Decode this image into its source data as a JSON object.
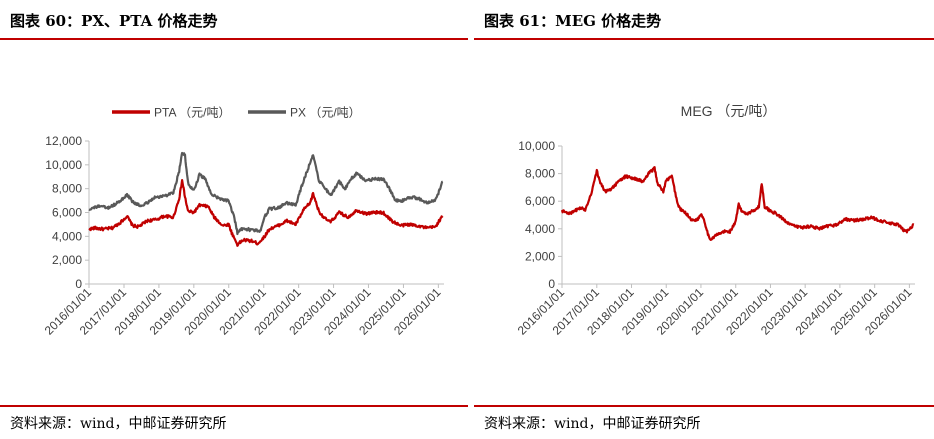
{
  "colors": {
    "accent_red": "#c00000",
    "pta_line": "#c00000",
    "px_line": "#595959",
    "meg_line": "#c00000",
    "axis": "#bfbfbf"
  },
  "left": {
    "title": "图表 60：PX、PTA 价格走势",
    "source": "资料来源：wind，中邮证券研究所"
  },
  "right": {
    "title": "图表 61：MEG 价格走势",
    "source": "资料来源：wind，中邮证券研究所"
  },
  "chart_data": [
    {
      "type": "line",
      "ylim": [
        0,
        12000
      ],
      "yticks": [
        "0",
        "2,000",
        "4,000",
        "6,000",
        "8,000",
        "10,000",
        "12,000"
      ],
      "xlim": [
        "2016-01-01",
        "2026-03-01"
      ],
      "xticks": [
        "2016/01/01",
        "2017/01/01",
        "2018/01/01",
        "2019/01/01",
        "2020/01/01",
        "2021/01/01",
        "2022/01/01",
        "2023/01/01",
        "2024/01/01",
        "2025/01/01",
        "2026/01/01"
      ],
      "legend": "top",
      "grid": false,
      "series": [
        {
          "name": "PTA （元/吨）",
          "color": "#c00000",
          "points": [
            [
              "2016-01-01",
              4600
            ],
            [
              "2016-03-01",
              4700
            ],
            [
              "2016-06-01",
              4600
            ],
            [
              "2016-09-01",
              4700
            ],
            [
              "2016-12-01",
              5200
            ],
            [
              "2017-02-01",
              5700
            ],
            [
              "2017-04-01",
              4900
            ],
            [
              "2017-06-01",
              4800
            ],
            [
              "2017-09-01",
              5300
            ],
            [
              "2017-12-01",
              5400
            ],
            [
              "2018-03-01",
              5700
            ],
            [
              "2018-06-01",
              5600
            ],
            [
              "2018-08-01",
              7200
            ],
            [
              "2018-09-01",
              8700
            ],
            [
              "2018-10-01",
              7300
            ],
            [
              "2018-11-01",
              6100
            ],
            [
              "2019-01-01",
              6000
            ],
            [
              "2019-03-01",
              6600
            ],
            [
              "2019-06-01",
              6500
            ],
            [
              "2019-08-01",
              5600
            ],
            [
              "2019-11-01",
              4900
            ],
            [
              "2020-01-01",
              5000
            ],
            [
              "2020-02-01",
              4300
            ],
            [
              "2020-04-01",
              3300
            ],
            [
              "2020-06-01",
              3700
            ],
            [
              "2020-09-01",
              3600
            ],
            [
              "2020-11-01",
              3400
            ],
            [
              "2021-01-01",
              3900
            ],
            [
              "2021-03-01",
              4600
            ],
            [
              "2021-06-01",
              4900
            ],
            [
              "2021-09-01",
              5300
            ],
            [
              "2021-12-01",
              5000
            ],
            [
              "2022-03-01",
              6300
            ],
            [
              "2022-05-01",
              6800
            ],
            [
              "2022-06-01",
              7600
            ],
            [
              "2022-08-01",
              6100
            ],
            [
              "2022-10-01",
              5500
            ],
            [
              "2022-12-01",
              5200
            ],
            [
              "2023-03-01",
              6000
            ],
            [
              "2023-06-01",
              5600
            ],
            [
              "2023-09-01",
              6200
            ],
            [
              "2023-12-01",
              5900
            ],
            [
              "2024-03-01",
              6000
            ],
            [
              "2024-06-01",
              6000
            ],
            [
              "2024-09-01",
              5300
            ],
            [
              "2024-12-01",
              4900
            ],
            [
              "2025-03-01",
              5000
            ],
            [
              "2025-06-01",
              4900
            ],
            [
              "2025-09-01",
              4700
            ],
            [
              "2025-12-01",
              4800
            ],
            [
              "2026-01-01",
              5200
            ],
            [
              "2026-02-15",
              5700
            ]
          ]
        },
        {
          "name": "PX （元/吨）",
          "color": "#595959",
          "points": [
            [
              "2016-01-01",
              6300
            ],
            [
              "2016-04-01",
              6500
            ],
            [
              "2016-08-01",
              6400
            ],
            [
              "2016-12-01",
              7000
            ],
            [
              "2017-02-01",
              7500
            ],
            [
              "2017-04-01",
              6900
            ],
            [
              "2017-07-01",
              6500
            ],
            [
              "2017-10-01",
              7000
            ],
            [
              "2017-12-01",
              7300
            ],
            [
              "2018-03-01",
              7400
            ],
            [
              "2018-06-01",
              7600
            ],
            [
              "2018-08-01",
              9500
            ],
            [
              "2018-09-01",
              11000
            ],
            [
              "2018-10-01",
              10800
            ],
            [
              "2018-11-01",
              8500
            ],
            [
              "2019-01-01",
              7800
            ],
            [
              "2019-03-01",
              9200
            ],
            [
              "2019-05-01",
              8800
            ],
            [
              "2019-07-01",
              7600
            ],
            [
              "2019-10-01",
              7100
            ],
            [
              "2020-01-01",
              7000
            ],
            [
              "2020-03-01",
              5500
            ],
            [
              "2020-04-01",
              4300
            ],
            [
              "2020-06-01",
              4700
            ],
            [
              "2020-09-01",
              4500
            ],
            [
              "2020-12-01",
              4500
            ],
            [
              "2021-01-01",
              5500
            ],
            [
              "2021-03-01",
              6300
            ],
            [
              "2021-06-01",
              6400
            ],
            [
              "2021-09-01",
              6800
            ],
            [
              "2021-12-01",
              6600
            ],
            [
              "2022-02-01",
              8200
            ],
            [
              "2022-04-01",
              9500
            ],
            [
              "2022-06-01",
              10900
            ],
            [
              "2022-08-01",
              8700
            ],
            [
              "2022-10-01",
              8100
            ],
            [
              "2022-12-01",
              7400
            ],
            [
              "2023-03-01",
              8600
            ],
            [
              "2023-05-01",
              8000
            ],
            [
              "2023-07-01",
              8800
            ],
            [
              "2023-09-01",
              9300
            ],
            [
              "2023-12-01",
              8700
            ],
            [
              "2024-03-01",
              8800
            ],
            [
              "2024-06-01",
              8800
            ],
            [
              "2024-08-01",
              8100
            ],
            [
              "2024-10-01",
              7100
            ],
            [
              "2024-12-01",
              6900
            ],
            [
              "2025-03-01",
              7300
            ],
            [
              "2025-06-01",
              7200
            ],
            [
              "2025-09-01",
              6800
            ],
            [
              "2025-12-01",
              7000
            ],
            [
              "2026-01-01",
              7600
            ],
            [
              "2026-02-15",
              8600
            ]
          ]
        }
      ]
    },
    {
      "type": "line",
      "ylim": [
        0,
        10000
      ],
      "yticks": [
        "0",
        "2,000",
        "4,000",
        "6,000",
        "8,000",
        "10,000"
      ],
      "xlim": [
        "2016-01-01",
        "2026-03-01"
      ],
      "xticks": [
        "2016/01/01",
        "2017/01/01",
        "2018/01/01",
        "2019/01/01",
        "2020/01/01",
        "2021/01/01",
        "2022/01/01",
        "2023/01/01",
        "2024/01/01",
        "2025/01/01",
        "2026/01/01"
      ],
      "legend": "top",
      "grid": false,
      "series": [
        {
          "name": "MEG （元/吨）",
          "color": "#c00000",
          "points": [
            [
              "2016-01-01",
              5300
            ],
            [
              "2016-04-01",
              5100
            ],
            [
              "2016-07-01",
              5500
            ],
            [
              "2016-09-01",
              5400
            ],
            [
              "2016-11-01",
              6500
            ],
            [
              "2017-01-01",
              8200
            ],
            [
              "2017-02-01",
              7400
            ],
            [
              "2017-04-01",
              6700
            ],
            [
              "2017-06-01",
              6900
            ],
            [
              "2017-09-01",
              7500
            ],
            [
              "2017-11-01",
              7800
            ],
            [
              "2018-01-01",
              7700
            ],
            [
              "2018-03-01",
              7600
            ],
            [
              "2018-05-01",
              7400
            ],
            [
              "2018-07-01",
              8000
            ],
            [
              "2018-09-01",
              8400
            ],
            [
              "2018-10-01",
              7300
            ],
            [
              "2018-12-01",
              6700
            ],
            [
              "2019-01-01",
              7500
            ],
            [
              "2019-03-01",
              7800
            ],
            [
              "2019-05-01",
              5800
            ],
            [
              "2019-06-01",
              5400
            ],
            [
              "2019-08-01",
              5100
            ],
            [
              "2019-10-01",
              4600
            ],
            [
              "2019-12-01",
              4700
            ],
            [
              "2020-01-01",
              5100
            ],
            [
              "2020-02-01",
              4700
            ],
            [
              "2020-04-01",
              3200
            ],
            [
              "2020-06-01",
              3500
            ],
            [
              "2020-09-01",
              3800
            ],
            [
              "2020-11-01",
              3800
            ],
            [
              "2021-01-01",
              4500
            ],
            [
              "2021-02-01",
              5800
            ],
            [
              "2021-03-01",
              5300
            ],
            [
              "2021-05-01",
              5100
            ],
            [
              "2021-07-01",
              5300
            ],
            [
              "2021-09-01",
              5600
            ],
            [
              "2021-10-01",
              7300
            ],
            [
              "2021-11-01",
              5600
            ],
            [
              "2022-01-01",
              5300
            ],
            [
              "2022-03-01",
              5100
            ],
            [
              "2022-06-01",
              4600
            ],
            [
              "2022-09-01",
              4200
            ],
            [
              "2022-12-01",
              4100
            ],
            [
              "2023-03-01",
              4200
            ],
            [
              "2023-06-01",
              4000
            ],
            [
              "2023-09-01",
              4200
            ],
            [
              "2023-12-01",
              4300
            ],
            [
              "2024-03-01",
              4700
            ],
            [
              "2024-06-01",
              4600
            ],
            [
              "2024-09-01",
              4700
            ],
            [
              "2024-12-01",
              4800
            ],
            [
              "2025-03-01",
              4600
            ],
            [
              "2025-06-01",
              4400
            ],
            [
              "2025-09-01",
              4300
            ],
            [
              "2025-11-01",
              3900
            ],
            [
              "2025-12-01",
              3800
            ],
            [
              "2026-01-01",
              4000
            ],
            [
              "2026-02-15",
              4300
            ]
          ]
        }
      ]
    }
  ]
}
